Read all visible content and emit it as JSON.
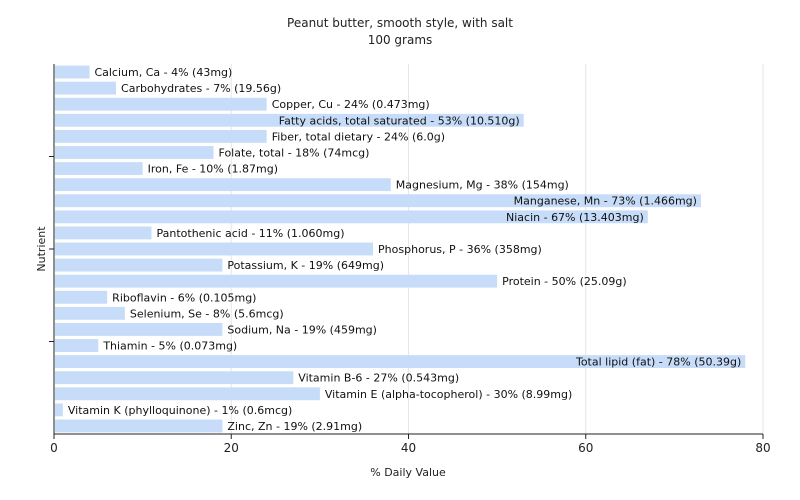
{
  "chart_data": {
    "type": "bar",
    "orientation": "horizontal",
    "title": "Peanut butter, smooth style, with salt",
    "subtitle": "100 grams",
    "xlabel": "% Daily Value",
    "ylabel": "Nutrient",
    "xlim": [
      0,
      80
    ],
    "xticks": [
      0,
      20,
      40,
      60,
      80
    ],
    "grid": true,
    "bar_color": "#c6dcf8",
    "categories": [
      "Calcium, Ca",
      "Carbohydrates",
      "Copper, Cu",
      "Fatty acids, total saturated",
      "Fiber, total dietary",
      "Folate, total",
      "Iron, Fe",
      "Magnesium, Mg",
      "Manganese, Mn",
      "Niacin",
      "Pantothenic acid",
      "Phosphorus, P",
      "Potassium, K",
      "Protein",
      "Riboflavin",
      "Selenium, Se",
      "Sodium, Na",
      "Thiamin",
      "Total lipid (fat)",
      "Vitamin B-6",
      "Vitamin E (alpha-tocopherol)",
      "Vitamin K (phylloquinone)",
      "Zinc, Zn"
    ],
    "values": [
      4,
      7,
      24,
      53,
      24,
      18,
      10,
      38,
      73,
      67,
      11,
      36,
      19,
      50,
      6,
      8,
      19,
      5,
      78,
      27,
      30,
      1,
      19
    ],
    "labels": [
      "Calcium, Ca - 4% (43mg)",
      "Carbohydrates - 7% (19.56g)",
      "Copper, Cu - 24% (0.473mg)",
      "Fatty acids, total saturated - 53% (10.510g)",
      "Fiber, total dietary - 24% (6.0g)",
      "Folate, total - 18% (74mcg)",
      "Iron, Fe - 10% (1.87mg)",
      "Magnesium, Mg - 38% (154mg)",
      "Manganese, Mn - 73% (1.466mg)",
      "Niacin - 67% (13.403mg)",
      "Pantothenic acid - 11% (1.060mg)",
      "Phosphorus, P - 36% (358mg)",
      "Potassium, K - 19% (649mg)",
      "Protein - 50% (25.09g)",
      "Riboflavin - 6% (0.105mg)",
      "Selenium, Se - 8% (5.6mcg)",
      "Sodium, Na - 19% (459mg)",
      "Thiamin - 5% (0.073mg)",
      "Total lipid (fat) - 78% (50.39g)",
      "Vitamin B-6 - 27% (0.543mg)",
      "Vitamin E (alpha-tocopherol) - 30% (8.99mg)",
      "Vitamin K (phylloquinone) - 1% (0.6mcg)",
      "Zinc, Zn - 19% (2.91mg)"
    ]
  }
}
